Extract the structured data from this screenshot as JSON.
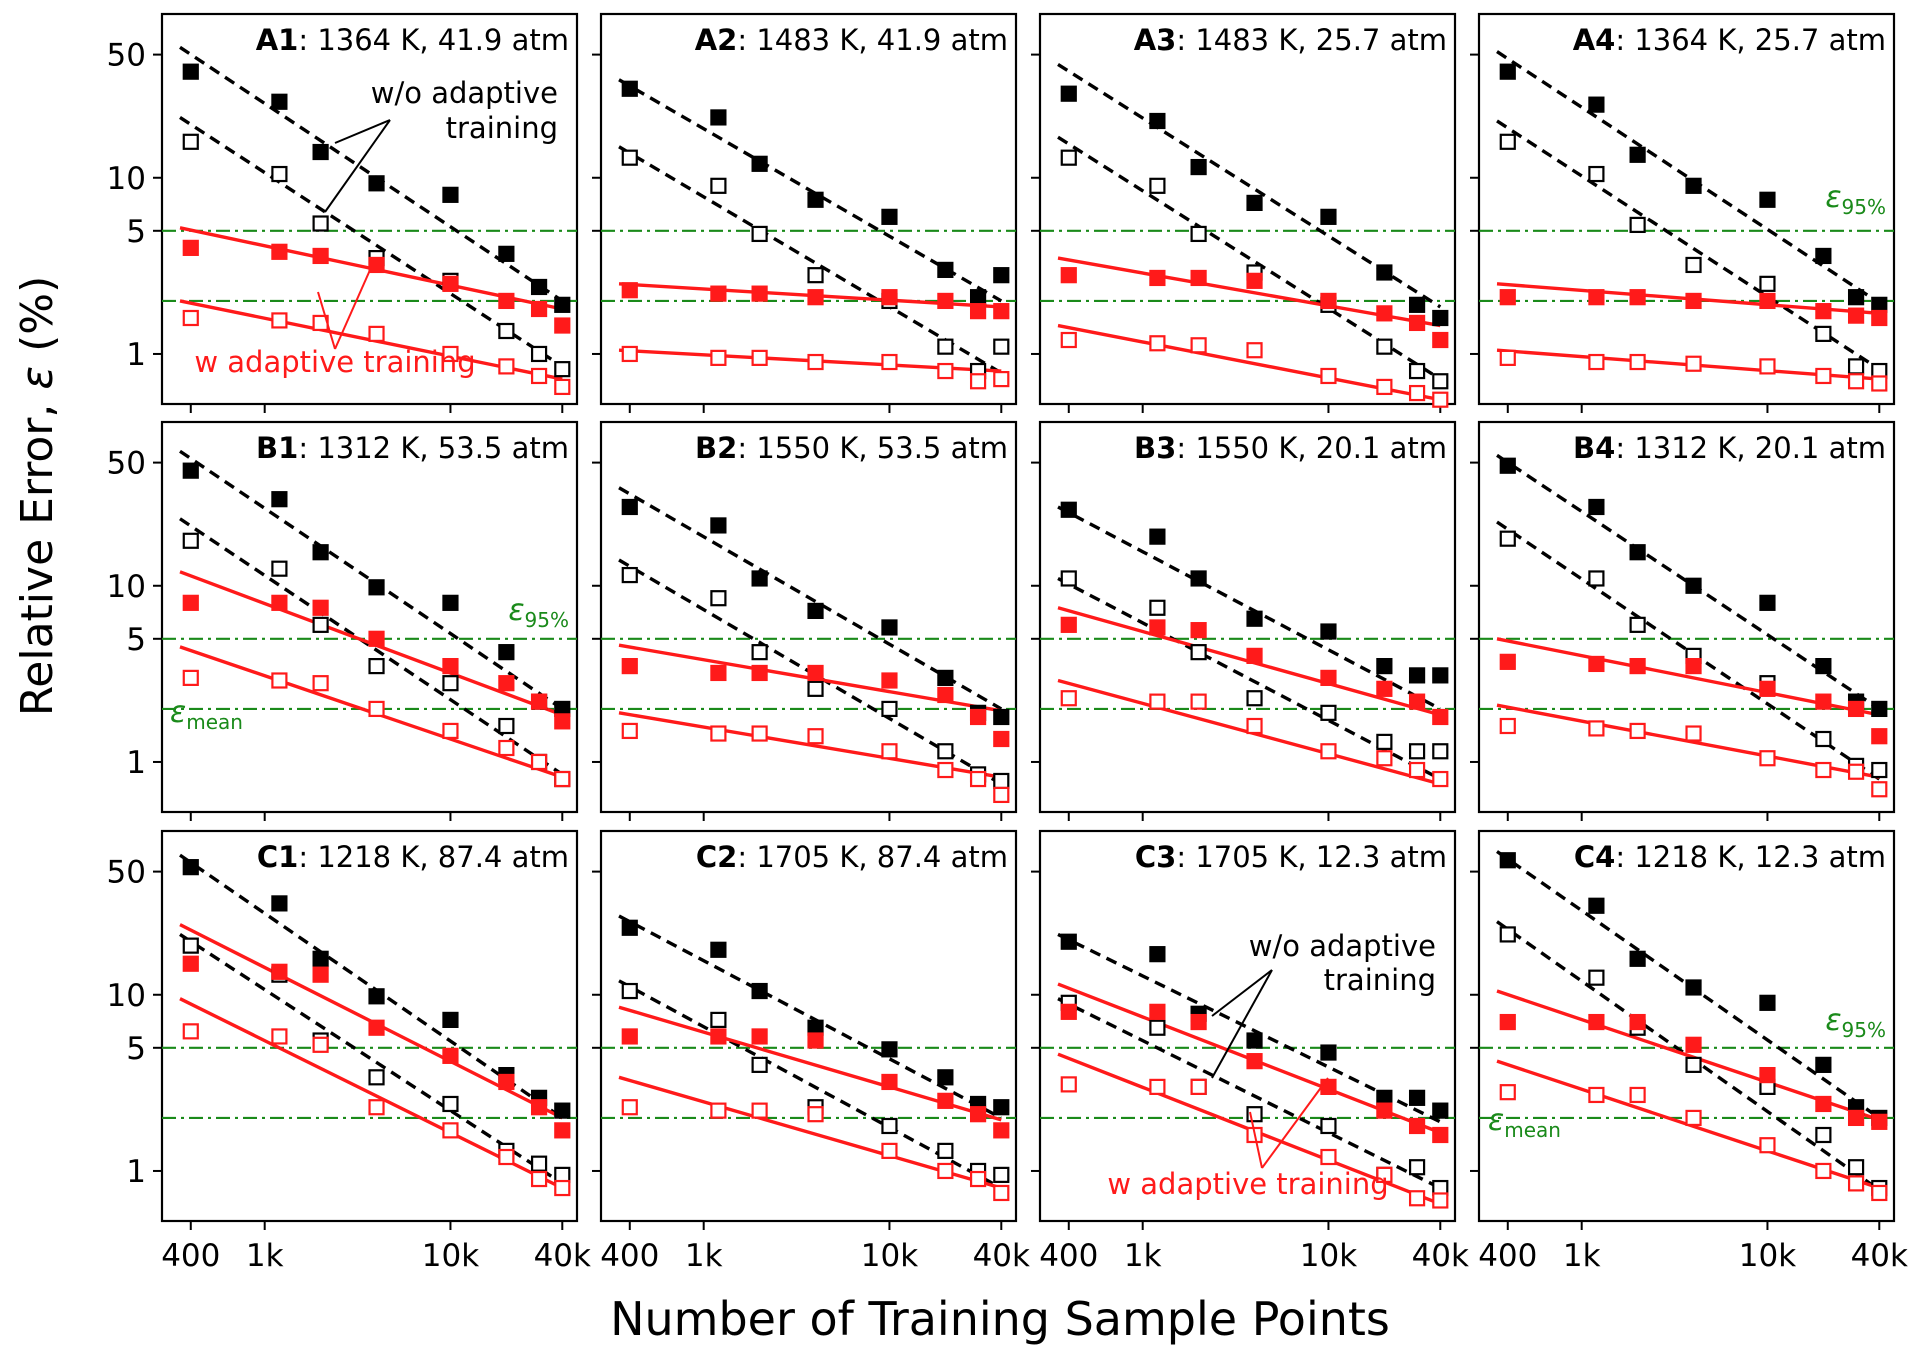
{
  "figure": {
    "ylabel_main": "Relative Error, ",
    "ylabel_symbol": "ε",
    "ylabel_unit": " (%)",
    "xlabel": "Number of Training Sample Points",
    "x_ticks": [
      400,
      1000,
      10000,
      40000
    ],
    "x_tick_labels": [
      "400",
      "1k",
      "10k",
      "40k"
    ],
    "y_ticks": [
      1,
      5,
      10,
      50
    ],
    "y_tick_labels": [
      "1",
      "5",
      "10",
      "50"
    ],
    "colors": {
      "without": "#000000",
      "with": "#ff1a1a",
      "threshold": "#1a8a1a"
    },
    "annotations": {
      "eps95_symbol": "ε",
      "eps95_sub": "95%",
      "epsmean_symbol": "ε",
      "epsmean_sub": "mean",
      "wo_line1": "w/o adaptive",
      "wo_line2": "training",
      "w_line": "w adaptive training"
    }
  },
  "chart_data": {
    "type": "scatter",
    "x_scale": "log",
    "y_scale": "log",
    "xlim": [
      280,
      48000
    ],
    "ylim": [
      0.52,
      85
    ],
    "grid": false,
    "x_points": [
      400,
      1200,
      2000,
      4000,
      10000,
      20000,
      30000,
      40000
    ],
    "thresholds": [
      {
        "name": "ε95%",
        "value": 5
      },
      {
        "name": "εmean",
        "value": 2
      }
    ],
    "legend_text": [
      "w/o adaptive training",
      "w adaptive training"
    ],
    "panels": [
      {
        "id": "A1",
        "condition": "1364 K, 41.9 atm",
        "wo_filled": [
          40,
          27,
          14,
          9.3,
          8,
          3.7,
          2.4,
          1.9
        ],
        "wo_open": [
          16,
          10.5,
          5.5,
          3.5,
          2.6,
          1.35,
          1.0,
          0.82
        ],
        "w_filled": [
          4.0,
          3.8,
          3.6,
          3.2,
          2.5,
          2.0,
          1.8,
          1.45
        ],
        "w_open": [
          1.6,
          1.55,
          1.5,
          1.3,
          1.0,
          0.85,
          0.75,
          0.65
        ],
        "fits": {
          "wo_filled": [
            55,
            2.0
          ],
          "wo_open": [
            22,
            0.85
          ],
          "w_filled": [
            5.2,
            1.8
          ],
          "w_open": [
            2.0,
            0.72
          ]
        }
      },
      {
        "id": "A2",
        "condition": "1483 K, 41.9 atm",
        "wo_filled": [
          32,
          22,
          12,
          7.5,
          6,
          3.0,
          2.1,
          2.8
        ],
        "wo_open": [
          13,
          9,
          4.8,
          2.8,
          2.0,
          1.1,
          0.8,
          1.1
        ],
        "w_filled": [
          2.3,
          2.2,
          2.2,
          2.1,
          2.1,
          2.0,
          1.75,
          1.75
        ],
        "w_open": [
          1.0,
          0.95,
          0.95,
          0.9,
          0.9,
          0.8,
          0.7,
          0.72
        ],
        "fits": {
          "wo_filled": [
            36,
            2.0
          ],
          "wo_open": [
            15,
            0.78
          ],
          "w_filled": [
            2.5,
            1.85
          ],
          "w_open": [
            1.05,
            0.8
          ]
        }
      },
      {
        "id": "A3",
        "condition": "1483 K, 25.7 atm",
        "wo_filled": [
          30,
          21,
          11.5,
          7.2,
          6,
          2.9,
          1.9,
          1.6
        ],
        "wo_open": [
          13,
          9,
          4.8,
          2.9,
          1.9,
          1.1,
          0.8,
          0.7
        ],
        "w_filled": [
          2.8,
          2.7,
          2.7,
          2.6,
          2.0,
          1.7,
          1.5,
          1.2
        ],
        "w_open": [
          1.2,
          1.15,
          1.12,
          1.05,
          0.75,
          0.65,
          0.6,
          0.55
        ],
        "fits": {
          "wo_filled": [
            44,
            1.85
          ],
          "wo_open": [
            17,
            0.72
          ],
          "w_filled": [
            3.5,
            1.45
          ],
          "w_open": [
            1.45,
            0.55
          ]
        }
      },
      {
        "id": "A4",
        "condition": "1364 K, 25.7 atm",
        "wo_filled": [
          40,
          26,
          13.5,
          9,
          7.5,
          3.6,
          2.1,
          1.9
        ],
        "wo_open": [
          16,
          10.5,
          5.4,
          3.2,
          2.5,
          1.3,
          0.85,
          0.8
        ],
        "w_filled": [
          2.1,
          2.1,
          2.1,
          2.0,
          2.0,
          1.75,
          1.65,
          1.6
        ],
        "w_open": [
          0.95,
          0.9,
          0.9,
          0.88,
          0.85,
          0.75,
          0.7,
          0.68
        ],
        "fits": {
          "wo_filled": [
            52,
            1.95
          ],
          "wo_open": [
            21,
            0.82
          ],
          "w_filled": [
            2.5,
            1.7
          ],
          "w_open": [
            1.05,
            0.72
          ]
        }
      },
      {
        "id": "B1",
        "condition": "1312 K, 53.5 atm",
        "wo_filled": [
          45,
          31,
          15.5,
          9.8,
          8,
          4.2,
          2.2,
          2.0
        ],
        "wo_open": [
          18,
          12.5,
          6,
          3.5,
          2.8,
          1.6,
          1.0,
          0.8
        ],
        "w_filled": [
          8,
          8,
          7.5,
          5,
          3.5,
          2.8,
          2.2,
          1.7
        ],
        "w_open": [
          3.0,
          2.9,
          2.8,
          2.0,
          1.5,
          1.2,
          1.0,
          0.8
        ],
        "fits": {
          "wo_filled": [
            58,
            2.0
          ],
          "wo_open": [
            24,
            0.85
          ],
          "w_filled": [
            12,
            1.85
          ],
          "w_open": [
            4.5,
            0.82
          ]
        }
      },
      {
        "id": "B2",
        "condition": "1550 K, 53.5 atm",
        "wo_filled": [
          28,
          22,
          11,
          7.2,
          5.8,
          3.0,
          1.9,
          1.8
        ],
        "wo_open": [
          11.5,
          8.5,
          4.2,
          2.6,
          2.0,
          1.15,
          0.85,
          0.78
        ],
        "w_filled": [
          3.5,
          3.2,
          3.2,
          3.2,
          2.9,
          2.4,
          1.8,
          1.35
        ],
        "w_open": [
          1.5,
          1.45,
          1.45,
          1.4,
          1.15,
          0.9,
          0.8,
          0.65
        ],
        "fits": {
          "wo_filled": [
            36,
            2.0
          ],
          "wo_open": [
            14,
            0.75
          ],
          "w_filled": [
            4.6,
            1.95
          ],
          "w_open": [
            1.9,
            0.82
          ]
        }
      },
      {
        "id": "B3",
        "condition": "1550 K, 20.1 atm",
        "wo_filled": [
          27,
          19,
          11,
          6.5,
          5.5,
          3.5,
          3.1,
          3.1
        ],
        "wo_open": [
          11,
          7.5,
          4.2,
          2.3,
          1.9,
          1.3,
          1.15,
          1.15
        ],
        "w_filled": [
          6,
          5.8,
          5.6,
          4,
          3.0,
          2.6,
          2.2,
          1.8
        ],
        "w_open": [
          2.3,
          2.2,
          2.2,
          1.6,
          1.15,
          1.05,
          0.9,
          0.8
        ],
        "fits": {
          "wo_filled": [
            28,
            2.0
          ],
          "wo_open": [
            11,
            0.8
          ],
          "w_filled": [
            7.5,
            1.85
          ],
          "w_open": [
            2.9,
            0.75
          ]
        }
      },
      {
        "id": "B4",
        "condition": "1312 K, 20.1 atm",
        "wo_filled": [
          48,
          28,
          15.5,
          10,
          8,
          3.5,
          2.2,
          2.0
        ],
        "wo_open": [
          18.5,
          11,
          6,
          4.0,
          2.8,
          1.35,
          0.95,
          0.9
        ],
        "w_filled": [
          3.7,
          3.6,
          3.5,
          3.5,
          2.6,
          2.2,
          2.0,
          1.4
        ],
        "w_open": [
          1.6,
          1.55,
          1.5,
          1.45,
          1.05,
          0.9,
          0.88,
          0.7
        ],
        "fits": {
          "wo_filled": [
            55,
            2.0
          ],
          "wo_open": [
            23,
            0.8
          ],
          "w_filled": [
            5.0,
            1.85
          ],
          "w_open": [
            2.1,
            0.82
          ]
        }
      },
      {
        "id": "C1",
        "condition": "1218 K, 87.4 atm",
        "wo_filled": [
          53,
          33,
          16,
          9.8,
          7.2,
          3.5,
          2.6,
          2.2
        ],
        "wo_open": [
          19,
          13,
          5.5,
          3.4,
          2.4,
          1.3,
          1.1,
          0.95
        ],
        "w_filled": [
          15,
          13.5,
          13,
          6.5,
          4.5,
          3.2,
          2.3,
          1.7
        ],
        "w_open": [
          6.2,
          5.8,
          5.2,
          2.3,
          1.7,
          1.2,
          0.9,
          0.8
        ],
        "fits": {
          "wo_filled": [
            62,
            2.0
          ],
          "wo_open": [
            22,
            0.85
          ],
          "w_filled": [
            25,
            2.0
          ],
          "w_open": [
            9.5,
            0.8
          ]
        }
      },
      {
        "id": "C2",
        "condition": "1705 K, 87.4 atm",
        "wo_filled": [
          24,
          18,
          10.5,
          6.5,
          4.9,
          3.4,
          2.4,
          2.3
        ],
        "wo_open": [
          10.5,
          7.2,
          4.0,
          2.3,
          1.8,
          1.3,
          1.0,
          0.95
        ],
        "w_filled": [
          5.8,
          5.8,
          5.8,
          5.5,
          3.2,
          2.5,
          2.1,
          1.7
        ],
        "w_open": [
          2.3,
          2.2,
          2.2,
          2.1,
          1.3,
          1.0,
          0.9,
          0.75
        ],
        "fits": {
          "wo_filled": [
            28,
            2.0
          ],
          "wo_open": [
            12,
            0.8
          ],
          "w_filled": [
            8.5,
            1.95
          ],
          "w_open": [
            3.4,
            0.8
          ]
        }
      },
      {
        "id": "C3",
        "condition": "1705 K, 12.3 atm",
        "wo_filled": [
          20,
          17,
          7.8,
          5.5,
          4.7,
          2.6,
          2.6,
          2.2
        ],
        "wo_open": [
          9,
          6.5,
          3.0,
          2.1,
          1.8,
          0.95,
          1.05,
          0.8
        ],
        "w_filled": [
          8,
          8,
          7,
          4.2,
          3.0,
          2.2,
          1.8,
          1.6
        ],
        "w_open": [
          3.1,
          3.0,
          3.0,
          1.6,
          1.2,
          0.95,
          0.7,
          0.68
        ],
        "fits": {
          "wo_filled": [
            22,
            1.9
          ],
          "wo_open": [
            9.5,
            0.8
          ],
          "w_filled": [
            11.5,
            1.65
          ],
          "w_open": [
            4.6,
            0.65
          ]
        }
      },
      {
        "id": "C4",
        "condition": "1218 K, 12.3 atm",
        "wo_filled": [
          58,
          32,
          16,
          11,
          9,
          4.0,
          2.3,
          2.0
        ],
        "wo_open": [
          22,
          12.5,
          6.5,
          4.0,
          3.0,
          1.6,
          1.05,
          0.8
        ],
        "w_filled": [
          7,
          7,
          7,
          5.2,
          3.5,
          2.4,
          2.0,
          1.9
        ],
        "w_open": [
          2.8,
          2.7,
          2.7,
          2.0,
          1.4,
          1.0,
          0.85,
          0.75
        ],
        "fits": {
          "wo_filled": [
            65,
            2.0
          ],
          "wo_open": [
            26,
            0.78
          ],
          "w_filled": [
            10.5,
            1.95
          ],
          "w_open": [
            4.2,
            0.8
          ]
        }
      }
    ]
  }
}
